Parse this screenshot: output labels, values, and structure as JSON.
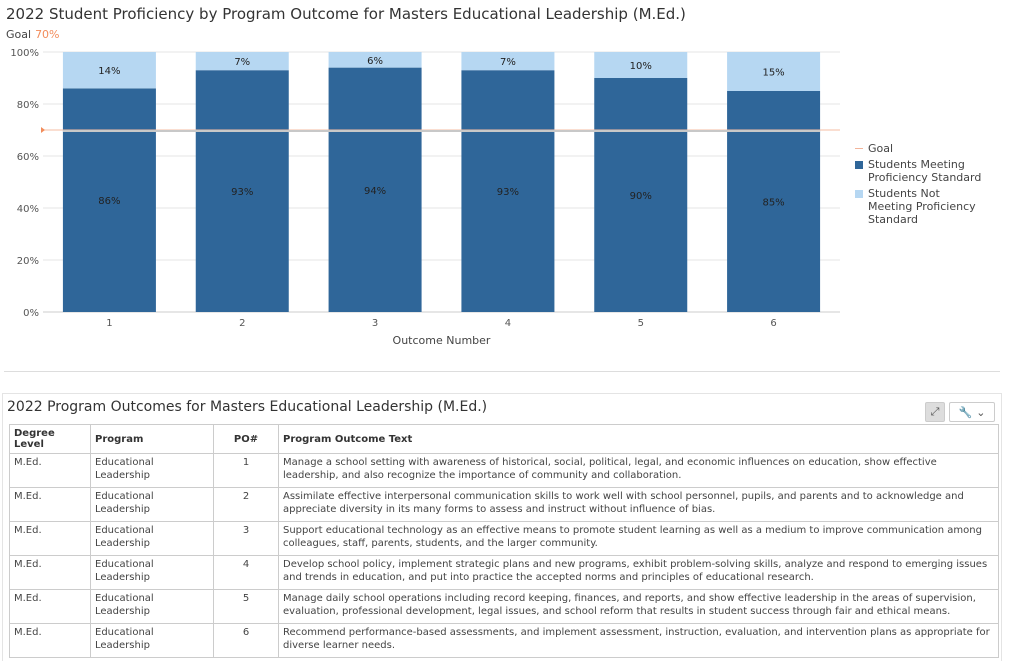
{
  "chart": {
    "title": "2022 Student Proficiency by Program Outcome for Masters Educational Leadership (M.Ed.)",
    "goal_label": "Goal",
    "goal_value_text": "70%"
  },
  "chart_data": {
    "type": "bar",
    "stacked": true,
    "categories": [
      "1",
      "2",
      "3",
      "4",
      "5",
      "6"
    ],
    "series": [
      {
        "name": "Students Meeting Proficiency Standard",
        "values": [
          86,
          93,
          94,
          93,
          90,
          85
        ],
        "labels": [
          "86%",
          "93%",
          "94%",
          "93%",
          "90%",
          "85%"
        ],
        "color": "#2f6699"
      },
      {
        "name": "Students Not Meeting Proficiency Standard",
        "values": [
          14,
          7,
          6,
          7,
          10,
          15
        ],
        "labels": [
          "14%",
          "7%",
          "6%",
          "7%",
          "10%",
          "15%"
        ],
        "color": "#b6d7f2"
      }
    ],
    "goal": {
      "name": "Goal",
      "value": 70,
      "color": "#f28c5b"
    },
    "yticks": [
      "100%",
      "80%",
      "60%",
      "40%",
      "20%",
      "0%"
    ],
    "ylim": [
      0,
      100
    ],
    "xlabel": "Outcome Number",
    "ylabel": "",
    "grid": true,
    "legend_position": "right"
  },
  "legend": {
    "goal": "Goal",
    "meeting": "Students Meeting Proficiency Standard",
    "not_meeting": "Students Not Meeting Proficiency Standard"
  },
  "table": {
    "title": "2022 Program Outcomes for Masters Educational Leadership (M.Ed.)",
    "headers": [
      "Degree Level",
      "Program",
      "PO#",
      "Program Outcome Text"
    ],
    "rows": [
      [
        "M.Ed.",
        "Educational Leadership",
        "1",
        "Manage a school setting with awareness of historical, social, political, legal, and economic influences on education, show effective leadership, and also recognize the importance of community and collaboration."
      ],
      [
        "M.Ed.",
        "Educational Leadership",
        "2",
        "Assimilate effective interpersonal communication skills to work well with school personnel, pupils, and parents and to acknowledge and appreciate diversity in its many forms to assess and instruct without influence of bias."
      ],
      [
        "M.Ed.",
        "Educational Leadership",
        "3",
        "Support educational technology as an effective means to promote student learning as well as a medium to improve communication among colleagues, staff, parents, students, and the larger community."
      ],
      [
        "M.Ed.",
        "Educational Leadership",
        "4",
        "Develop school policy, implement strategic plans and new programs, exhibit problem-solving skills, analyze and respond to emerging issues and trends in education, and put into practice the accepted norms and principles of educational research."
      ],
      [
        "M.Ed.",
        "Educational Leadership",
        "5",
        "Manage daily school operations including record keeping, finances, and reports, and show effective leadership in the areas of supervision, evaluation, professional development, legal issues, and school reform that results in student success through fair and ethical means."
      ],
      [
        "M.Ed.",
        "Educational Leadership",
        "6",
        "Recommend performance-based assessments, and implement assessment, instruction, evaluation, and intervention plans as appropriate for diverse learner needs."
      ]
    ]
  },
  "icons": {
    "expand": "expand-icon",
    "wrench": "wrench-icon",
    "dropdown": "chevron-down-icon"
  }
}
